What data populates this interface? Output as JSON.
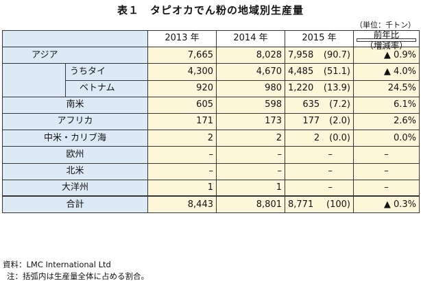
{
  "title": "表１　タピオカでん粉の地域別生産量",
  "unit": "（単位：千トン）",
  "headers": {
    "y2013": "2013 年",
    "y2014": "2014 年",
    "y2015": "2015 年",
    "change_line1": "前年比",
    "change_line2": "（増減率）"
  },
  "rows": [
    {
      "name": "アジア",
      "y2013": "7,665",
      "y2014": "8,028",
      "y2015": "7,958",
      "share": "(90.7)",
      "change": "▲ 0.9%"
    },
    {
      "name": "うちタイ",
      "y2013": "4,300",
      "y2014": "4,670",
      "y2015": "4,485",
      "share": "(51.1)",
      "change": "▲ 4.0%"
    },
    {
      "name": "ベトナム",
      "y2013": "920",
      "y2014": "980",
      "y2015": "1,220",
      "share": "(13.9)",
      "change": "24.5%"
    },
    {
      "name": "南米",
      "y2013": "605",
      "y2014": "598",
      "y2015": "635",
      "share": "(7.2)",
      "change": "6.1%"
    },
    {
      "name": "アフリカ",
      "y2013": "171",
      "y2014": "173",
      "y2015": "177",
      "share": "(2.0)",
      "change": "2.6%"
    },
    {
      "name": "中米・カリブ海",
      "y2013": "2",
      "y2014": "2",
      "y2015": "2",
      "share": "(0.0)",
      "change": "0.0%"
    },
    {
      "name": "欧州",
      "y2013": "–",
      "y2014": "–",
      "y2015": "–",
      "share": "",
      "change": "–"
    },
    {
      "name": "北米",
      "y2013": "–",
      "y2014": "–",
      "y2015": "–",
      "share": "",
      "change": "–"
    },
    {
      "name": "大洋州",
      "y2013": "1",
      "y2014": "1",
      "y2015": "–",
      "share": "",
      "change": "–"
    }
  ],
  "total": {
    "name": "合計",
    "y2013": "8,443",
    "y2014": "8,801",
    "y2015": "8,771",
    "share": "(100)",
    "change": "▲ 0.3%"
  },
  "notes": {
    "source": "資料：LMC International Ltd",
    "note": "注：括弧内は生産量全体に占める割合。"
  },
  "colors": {
    "header_bg": "#dbeaf5",
    "value_bg": "#fdf6d9"
  }
}
